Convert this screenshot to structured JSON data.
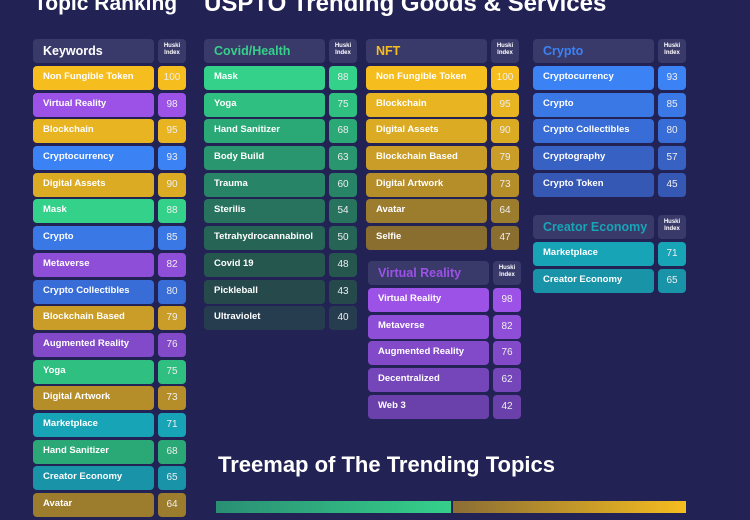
{
  "titles": {
    "topic_ranking": "Topic Ranking",
    "uspto": "USPTO Trending Goods & Services",
    "treemap": "Treemap of The Trending Topics"
  },
  "index_label": "Huski Index",
  "columns": [
    {
      "id": "keywords",
      "title": "Keywords",
      "title_color": "#ffffff",
      "rows": [
        {
          "label": "Non Fungible Token",
          "value": 100,
          "color": "#f6bd1f"
        },
        {
          "label": "Virtual Reality",
          "value": 98,
          "color": "#9c52e6"
        },
        {
          "label": "Blockchain",
          "value": 95,
          "color": "#e8b421"
        },
        {
          "label": "Cryptocurrency",
          "value": 93,
          "color": "#3b82f5"
        },
        {
          "label": "Digital Assets",
          "value": 90,
          "color": "#dcab24"
        },
        {
          "label": "Mask",
          "value": 88,
          "color": "#34d18a"
        },
        {
          "label": "Crypto",
          "value": 85,
          "color": "#3a78e6"
        },
        {
          "label": "Metaverse",
          "value": 82,
          "color": "#8e4ed8"
        },
        {
          "label": "Crypto Collectibles",
          "value": 80,
          "color": "#386cd6"
        },
        {
          "label": "Blockchain Based",
          "value": 79,
          "color": "#c99d27"
        },
        {
          "label": "Augmented Reality",
          "value": 76,
          "color": "#8249c9"
        },
        {
          "label": "Yoga",
          "value": 75,
          "color": "#2fbf80"
        },
        {
          "label": "Digital Artwork",
          "value": 73,
          "color": "#b58e2a"
        },
        {
          "label": "Marketplace",
          "value": 71,
          "color": "#17a4b7"
        },
        {
          "label": "Hand Sanitizer",
          "value": 68,
          "color": "#2aa977"
        },
        {
          "label": "Creator Economy",
          "value": 65,
          "color": "#1893a8"
        },
        {
          "label": "Avatar",
          "value": 64,
          "color": "#9c7c2d"
        }
      ]
    },
    {
      "id": "covid-health",
      "title": "Covid/Health",
      "title_color": "#35d08a",
      "rows": [
        {
          "label": "Mask",
          "value": 88,
          "color": "#34d18a"
        },
        {
          "label": "Yoga",
          "value": 75,
          "color": "#2fbf80"
        },
        {
          "label": "Hand Sanitizer",
          "value": 68,
          "color": "#2aa977"
        },
        {
          "label": "Body Build",
          "value": 63,
          "color": "#2a966f"
        },
        {
          "label": "Trauma",
          "value": 60,
          "color": "#288466"
        },
        {
          "label": "Sterilis",
          "value": 54,
          "color": "#27735e"
        },
        {
          "label": "Tetrahydrocannabinol",
          "value": 50,
          "color": "#266456"
        },
        {
          "label": "Covid 19",
          "value": 48,
          "color": "#25574f"
        },
        {
          "label": "Pickleball",
          "value": 43,
          "color": "#264a4c"
        },
        {
          "label": "Ultraviolet",
          "value": 40,
          "color": "#263d4f"
        }
      ]
    },
    {
      "id": "nft",
      "title": "NFT",
      "title_color": "#f6bd1f",
      "rows": [
        {
          "label": "Non Fungible Token",
          "value": 100,
          "color": "#f6bd1f"
        },
        {
          "label": "Blockchain",
          "value": 95,
          "color": "#e8b421"
        },
        {
          "label": "Digital Assets",
          "value": 90,
          "color": "#dcab24"
        },
        {
          "label": "Blockchain Based",
          "value": 79,
          "color": "#c99d27"
        },
        {
          "label": "Digital Artwork",
          "value": 73,
          "color": "#b58e2a"
        },
        {
          "label": "Avatar",
          "value": 64,
          "color": "#9c7c2d"
        },
        {
          "label": "Selfie",
          "value": 47,
          "color": "#8a6e2f"
        }
      ]
    },
    {
      "id": "crypto",
      "title": "Crypto",
      "title_color": "#3b82f5",
      "rows": [
        {
          "label": "Cryptocurrency",
          "value": 93,
          "color": "#3b82f5"
        },
        {
          "label": "Crypto",
          "value": 85,
          "color": "#3a78e6"
        },
        {
          "label": "Crypto Collectibles",
          "value": 80,
          "color": "#386cd6"
        },
        {
          "label": "Cryptography",
          "value": 57,
          "color": "#3762c4"
        },
        {
          "label": "Crypto Token",
          "value": 45,
          "color": "#3558b4"
        }
      ]
    },
    {
      "id": "creator-economy",
      "title": "Creator Economy",
      "title_color": "#17a4b7",
      "rows": [
        {
          "label": "Marketplace",
          "value": 71,
          "color": "#17a4b7"
        },
        {
          "label": "Creator Economy",
          "value": 65,
          "color": "#1893a8"
        }
      ]
    },
    {
      "id": "virtual-reality",
      "title": "Virtual Reality",
      "title_color": "#9c52e6",
      "rows": [
        {
          "label": "Virtual Reality",
          "value": 98,
          "color": "#9c52e6"
        },
        {
          "label": "Metaverse",
          "value": 82,
          "color": "#8e4ed8"
        },
        {
          "label": "Augmented Reality",
          "value": 76,
          "color": "#8249c9"
        },
        {
          "label": "Decentralized",
          "value": 62,
          "color": "#7545ba"
        },
        {
          "label": "Web 3",
          "value": 42,
          "color": "#6a41ab"
        }
      ]
    }
  ]
}
